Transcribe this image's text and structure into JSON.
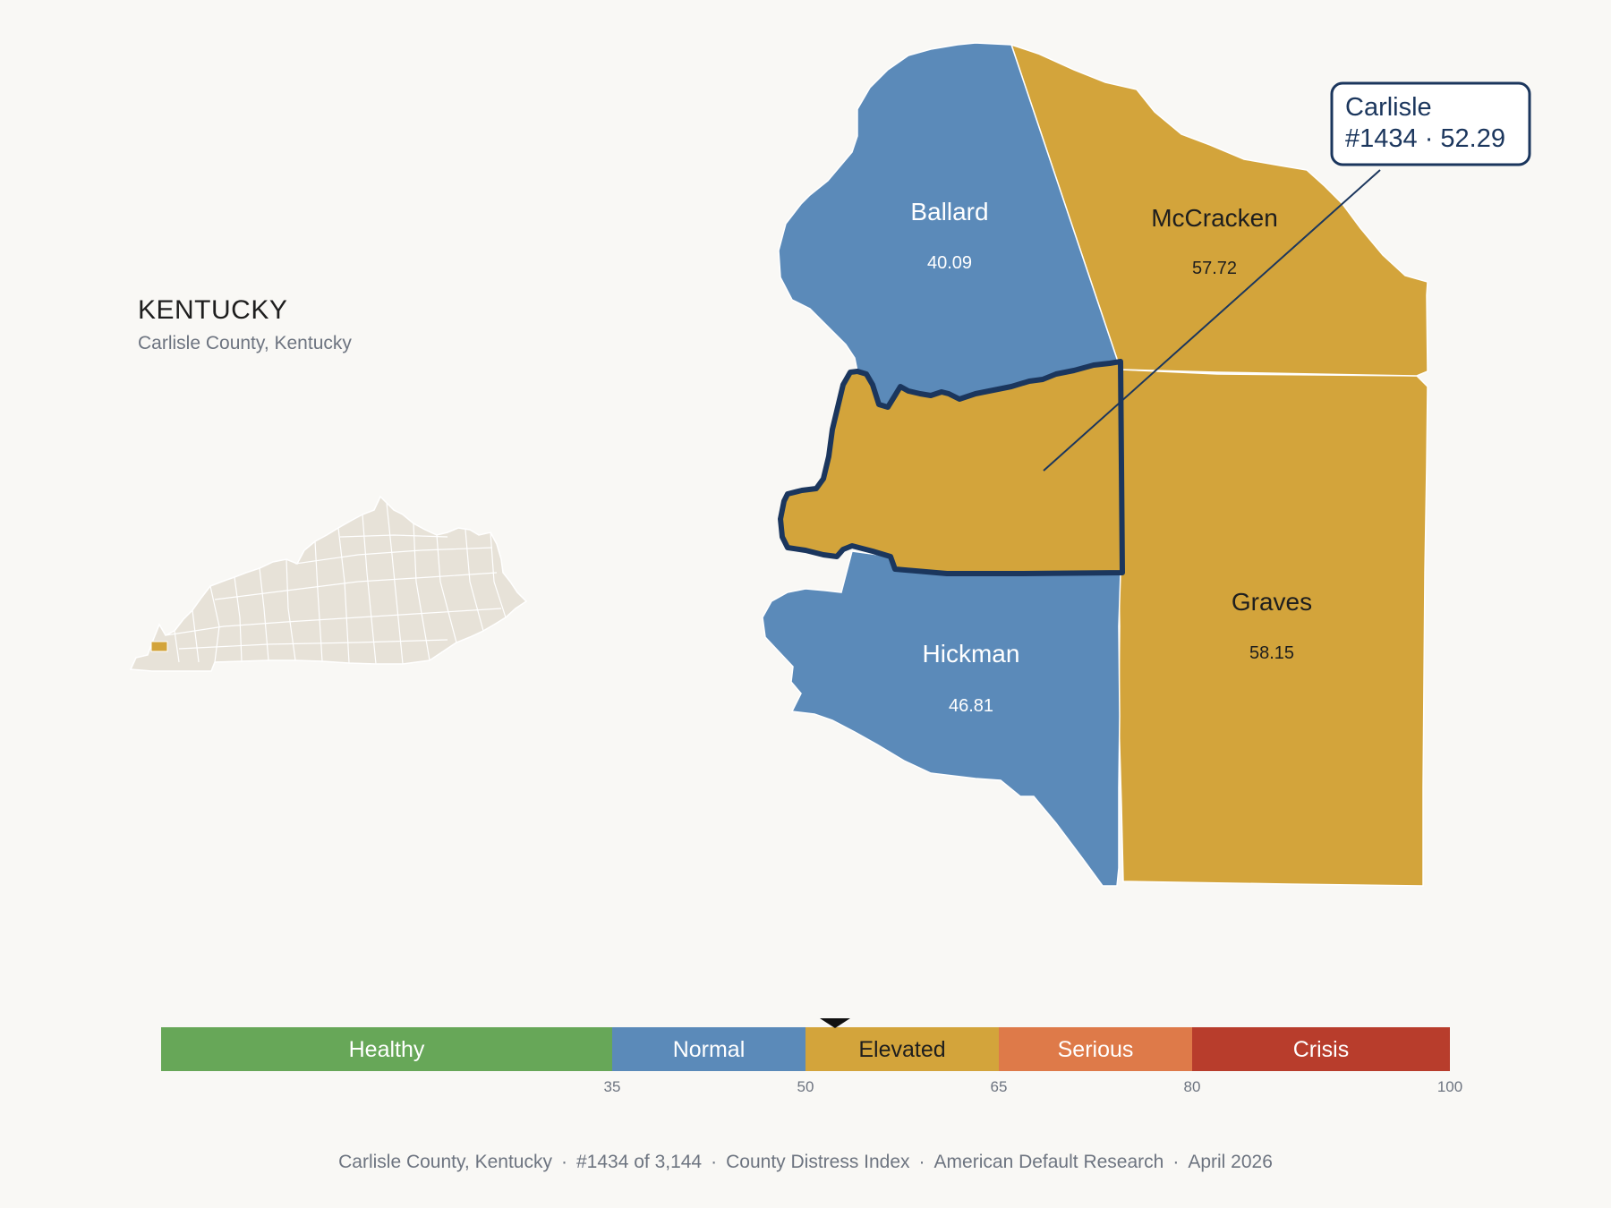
{
  "state": {
    "title": "KENTUCKY",
    "subtitle": "Carlisle County, Kentucky"
  },
  "counties": [
    {
      "id": "ballard",
      "name": "Ballard",
      "value": "40.09",
      "category": "Normal"
    },
    {
      "id": "mccracken",
      "name": "McCracken",
      "value": "57.72",
      "category": "Elevated"
    },
    {
      "id": "carlisle",
      "name": "Carlisle",
      "value": "52.29",
      "category": "Elevated",
      "highlighted": true
    },
    {
      "id": "hickman",
      "name": "Hickman",
      "value": "46.81",
      "category": "Normal"
    },
    {
      "id": "graves",
      "name": "Graves",
      "value": "58.15",
      "category": "Elevated"
    }
  ],
  "callout": {
    "name": "Carlisle",
    "detail": "#1434 · 52.29"
  },
  "legend": {
    "bands": [
      {
        "label": "Healthy",
        "from": 0,
        "to": 35,
        "color": "#67a758"
      },
      {
        "label": "Normal",
        "from": 35,
        "to": 50,
        "color": "#5b8ab9"
      },
      {
        "label": "Elevated",
        "from": 50,
        "to": 65,
        "color": "#d3a43b"
      },
      {
        "label": "Serious",
        "from": 65,
        "to": 80,
        "color": "#de7a49"
      },
      {
        "label": "Crisis",
        "from": 80,
        "to": 100,
        "color": "#b83d2c"
      }
    ],
    "ticks": [
      "35",
      "50",
      "65",
      "80",
      "100"
    ],
    "marker_value": 52.29
  },
  "footer": {
    "county": "Carlisle County, Kentucky",
    "rank": "#1434 of 3,144",
    "index": "County Distress Index",
    "source": "American Default Research",
    "date": "April 2026"
  },
  "colors": {
    "background": "#f9f8f5",
    "normal": "#5b8ab9",
    "elevated": "#d3a43b",
    "highlight_outline": "#1b365d",
    "state_fill": "#e7e2d8"
  }
}
